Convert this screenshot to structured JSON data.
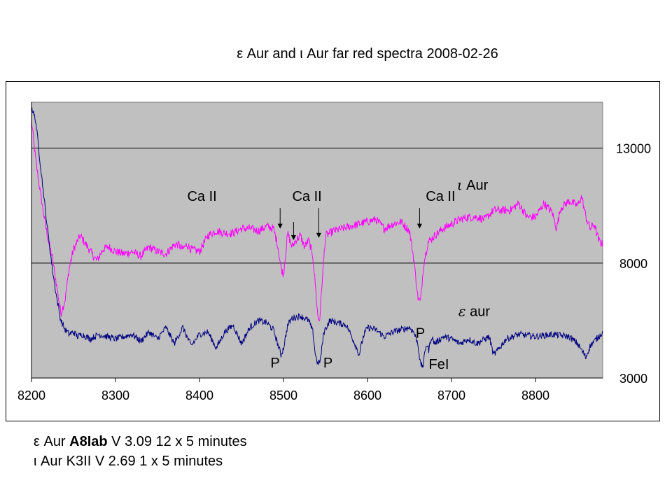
{
  "title": "ε Aur and ι Aur far red spectra 2008-02-26",
  "notes": {
    "line1": {
      "prefix": "ε Aur ",
      "bold": "A8Iab",
      "suffix": " V 3.09 12 x 5 minutes"
    },
    "line2": "ι Aur K3II V 2.69 1 x 5 minutes"
  },
  "colors": {
    "plot_area": "#c0c0c0",
    "iota": "#ff00ff",
    "epsilon": "#000080",
    "gridline": "#000000"
  },
  "chart_data": {
    "type": "line",
    "title": "ε Aur and ι Aur far red spectra 2008-02-26",
    "xlabel": "",
    "ylabel": "",
    "xlim": [
      8200,
      8880
    ],
    "ylim": [
      3000,
      15000
    ],
    "x_ticks": [
      8200,
      8300,
      8400,
      8500,
      8600,
      8700,
      8800
    ],
    "y_ticks": [
      3000,
      8000,
      13000
    ],
    "y_axis_side": "right",
    "gridlines_y": [
      8000,
      13000
    ],
    "series": [
      {
        "name": "ι Aur",
        "color": "#ff00ff",
        "noise": 180,
        "x": [
          8200,
          8205,
          8210,
          8215,
          8220,
          8225,
          8230,
          8235,
          8240,
          8245,
          8250,
          8258,
          8265,
          8272,
          8278,
          8285,
          8292,
          8300,
          8310,
          8320,
          8330,
          8340,
          8350,
          8360,
          8370,
          8375,
          8380,
          8385,
          8390,
          8400,
          8410,
          8420,
          8430,
          8440,
          8450,
          8460,
          8470,
          8480,
          8488,
          8493,
          8497,
          8500,
          8505,
          8510,
          8515,
          8520,
          8525,
          8530,
          8535,
          8538,
          8541,
          8543,
          8546,
          8550,
          8555,
          8560,
          8570,
          8580,
          8590,
          8600,
          8610,
          8620,
          8630,
          8640,
          8650,
          8655,
          8660,
          8663,
          8667,
          8672,
          8680,
          8690,
          8700,
          8710,
          8720,
          8730,
          8740,
          8750,
          8760,
          8770,
          8780,
          8790,
          8800,
          8810,
          8820,
          8825,
          8830,
          8840,
          8850,
          8855,
          8860,
          8865,
          8870,
          8875,
          8880
        ],
        "values": [
          14200,
          12500,
          11200,
          10000,
          9000,
          8200,
          7000,
          5800,
          6400,
          7800,
          8600,
          9200,
          8800,
          8400,
          8100,
          8600,
          8700,
          8500,
          8400,
          8500,
          8300,
          8700,
          8500,
          8400,
          8800,
          8800,
          8600,
          8800,
          8600,
          8500,
          9200,
          9400,
          9300,
          9300,
          9500,
          9500,
          9400,
          9600,
          9500,
          8800,
          7800,
          7500,
          9300,
          8700,
          9000,
          9200,
          8700,
          9000,
          8300,
          7000,
          5600,
          5500,
          7200,
          9200,
          9300,
          9400,
          9500,
          9600,
          9700,
          9800,
          9900,
          9500,
          9700,
          9800,
          9400,
          8200,
          6500,
          6300,
          8000,
          8900,
          9200,
          9500,
          9700,
          9900,
          10000,
          10000,
          9900,
          10300,
          10300,
          10300,
          10600,
          10000,
          10000,
          10600,
          10200,
          9500,
          10400,
          10700,
          10500,
          10900,
          10000,
          9500,
          9700,
          9000,
          8800
        ]
      },
      {
        "name": "ε aur",
        "color": "#000080",
        "noise": 140,
        "x": [
          8200,
          8205,
          8210,
          8215,
          8220,
          8225,
          8230,
          8235,
          8240,
          8245,
          8250,
          8255,
          8260,
          8270,
          8280,
          8290,
          8300,
          8310,
          8320,
          8330,
          8340,
          8350,
          8360,
          8370,
          8380,
          8390,
          8400,
          8410,
          8420,
          8430,
          8440,
          8450,
          8460,
          8470,
          8480,
          8488,
          8493,
          8497,
          8500,
          8505,
          8510,
          8520,
          8530,
          8535,
          8538,
          8541,
          8544,
          8548,
          8555,
          8565,
          8575,
          8585,
          8590,
          8595,
          8600,
          8610,
          8620,
          8630,
          8640,
          8650,
          8655,
          8660,
          8663,
          8666,
          8670,
          8673,
          8676,
          8680,
          8690,
          8700,
          8710,
          8720,
          8730,
          8745,
          8750,
          8755,
          8765,
          8780,
          8800,
          8820,
          8840,
          8850,
          8855,
          8860,
          8865,
          8870,
          8875,
          8880
        ],
        "values": [
          14800,
          14200,
          12500,
          10800,
          9200,
          7700,
          6500,
          5500,
          5100,
          4900,
          5000,
          4800,
          4900,
          4700,
          4900,
          4800,
          4700,
          4800,
          4900,
          4600,
          5000,
          4700,
          5200,
          4500,
          5200,
          4400,
          4900,
          5000,
          4300,
          5000,
          5300,
          4500,
          5200,
          5500,
          5400,
          5100,
          4500,
          4000,
          4300,
          5300,
          5600,
          5700,
          5500,
          5000,
          4000,
          3600,
          3800,
          5000,
          5500,
          5400,
          5300,
          4500,
          4000,
          4800,
          5200,
          5100,
          4800,
          5000,
          5100,
          5200,
          5000,
          4500,
          3600,
          3500,
          4500,
          4200,
          4800,
          4500,
          4800,
          4700,
          4500,
          4700,
          4500,
          4800,
          4000,
          4200,
          4700,
          4900,
          4800,
          4900,
          4800,
          4500,
          4200,
          3900,
          4400,
          4600,
          4800,
          5000
        ]
      }
    ],
    "annotations": [
      {
        "text": "ι Aur",
        "x": 8725,
        "y": 11200,
        "italic_prefix": true
      },
      {
        "text": "ε aur",
        "x": 8727,
        "y": 5700,
        "italic_prefix": true
      },
      {
        "text": "Ca II",
        "x": 8403,
        "y": 10700,
        "arrow_to": [
          8496,
          9500
        ]
      },
      {
        "text": "Ca II",
        "x": 8528,
        "y": 10700,
        "arrow_to": [
          8542,
          9100
        ]
      },
      {
        "text": "Ca II",
        "x": 8687,
        "y": 10700,
        "arrow_to": [
          8662,
          9500
        ]
      },
      {
        "text": "",
        "x": 8510,
        "y": 9500,
        "arrow_to": [
          8512,
          9000
        ]
      },
      {
        "text": "P",
        "x": 8490,
        "y": 3450
      },
      {
        "text": "P",
        "x": 8553,
        "y": 3450
      },
      {
        "text": "P",
        "x": 8663,
        "y": 4750
      },
      {
        "text": "FeI",
        "x": 8685,
        "y": 3400
      }
    ]
  }
}
